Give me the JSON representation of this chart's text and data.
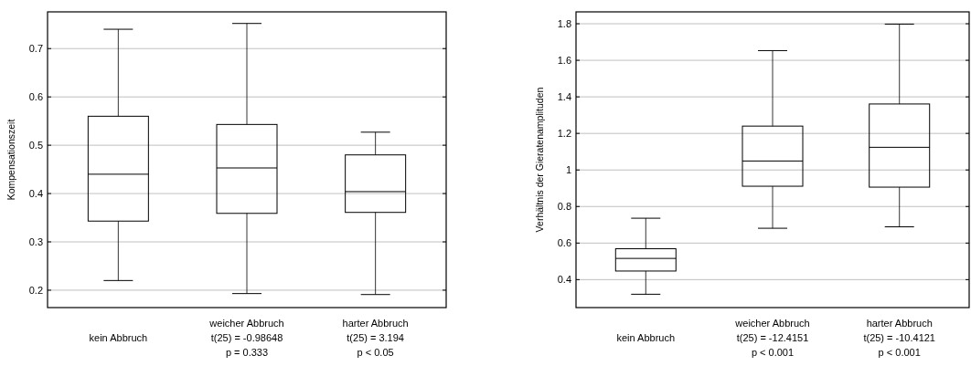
{
  "chart_data": [
    {
      "type": "box",
      "ylabel": "Kompensationszeit",
      "categories": [
        "kein Abbruch",
        "weicher Abbruch\nt(25) = -0.98648\np = 0.333",
        "harter Abbruch\nt(25) = 3.194\np < 0.05"
      ],
      "boxes": [
        {
          "low": 0.22,
          "q1": 0.343,
          "median": 0.44,
          "q3": 0.56,
          "high": 0.74
        },
        {
          "low": 0.193,
          "q1": 0.359,
          "median": 0.453,
          "q3": 0.543,
          "high": 0.752
        },
        {
          "low": 0.191,
          "q1": 0.361,
          "median": 0.404,
          "q3": 0.48,
          "high": 0.527
        }
      ],
      "ylim": [
        0.164,
        0.776
      ],
      "yticks": [
        0.2,
        0.3,
        0.4,
        0.5,
        0.6,
        0.7
      ],
      "grid": "y"
    },
    {
      "type": "box",
      "ylabel": "Verhältnis der Gieratenamplituden",
      "categories": [
        "kein Abbruch",
        "weicher Abbruch\nt(25) = -12.4151\np < 0.001",
        "harter Abbruch\nt(25) = -10.4121\np < 0.001"
      ],
      "boxes": [
        {
          "low": 0.32,
          "q1": 0.447,
          "median": 0.516,
          "q3": 0.569,
          "high": 0.736
        },
        {
          "low": 0.681,
          "q1": 0.911,
          "median": 1.049,
          "q3": 1.24,
          "high": 1.653
        },
        {
          "low": 0.689,
          "q1": 0.906,
          "median": 1.124,
          "q3": 1.361,
          "high": 1.798
        }
      ],
      "ylim": [
        0.247,
        1.865
      ],
      "yticks": [
        0.4,
        0.6,
        0.8,
        {
          "value": 1,
          "label": "1"
        },
        1.2,
        1.4,
        1.6,
        1.8
      ],
      "grid": "y"
    }
  ]
}
